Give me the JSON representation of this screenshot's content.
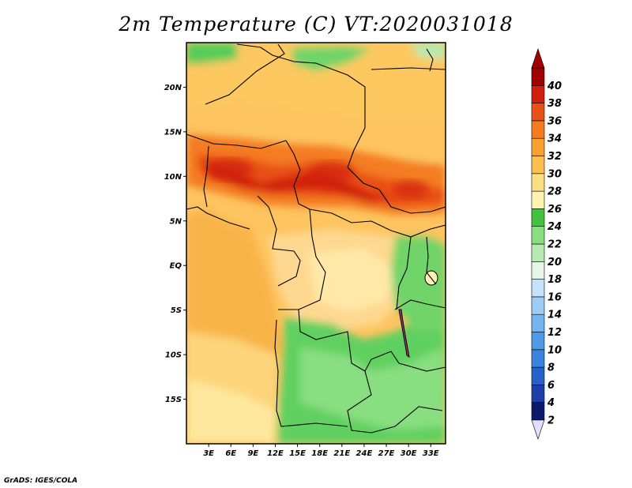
{
  "title": "2m Temperature (C) VT:2020031018",
  "credit": "GrADS: IGES/COLA",
  "map": {
    "lon_range": [
      0,
      35
    ],
    "lat_range": [
      -20,
      25
    ],
    "lat_ticks": [
      {
        "value": 20,
        "label": "20N"
      },
      {
        "value": 15,
        "label": "15N"
      },
      {
        "value": 10,
        "label": "10N"
      },
      {
        "value": 5,
        "label": "5N"
      },
      {
        "value": 0,
        "label": "EQ"
      },
      {
        "value": -5,
        "label": "5S"
      },
      {
        "value": -10,
        "label": "10S"
      },
      {
        "value": -15,
        "label": "15S"
      }
    ],
    "lon_ticks": [
      {
        "value": 3,
        "label": "3E"
      },
      {
        "value": 6,
        "label": "6E"
      },
      {
        "value": 9,
        "label": "9E"
      },
      {
        "value": 12,
        "label": "12E"
      },
      {
        "value": 15,
        "label": "15E"
      },
      {
        "value": 18,
        "label": "18E"
      },
      {
        "value": 21,
        "label": "21E"
      },
      {
        "value": 24,
        "label": "24E"
      },
      {
        "value": 27,
        "label": "27E"
      },
      {
        "value": 30,
        "label": "30E"
      },
      {
        "value": 33,
        "label": "33E"
      }
    ]
  },
  "colorbar": {
    "levels": [
      "2",
      "4",
      "6",
      "8",
      "10",
      "12",
      "14",
      "16",
      "18",
      "20",
      "22",
      "24",
      "26",
      "28",
      "30",
      "32",
      "34",
      "36",
      "38",
      "40"
    ],
    "colors": [
      "#0c1a6e",
      "#1e3fa8",
      "#2563c8",
      "#3b82dc",
      "#4f9ae8",
      "#74b4f0",
      "#9ccbf5",
      "#c4e2fa",
      "#e6f6e6",
      "#b6eab0",
      "#88de80",
      "#40c440",
      "#fff3b0",
      "#fedf80",
      "#fdbf50",
      "#f8a030",
      "#f47c20",
      "#e85018",
      "#d22010",
      "#a00000"
    ],
    "under_color": "#e0e0ff",
    "over_color": "#a00000"
  }
}
